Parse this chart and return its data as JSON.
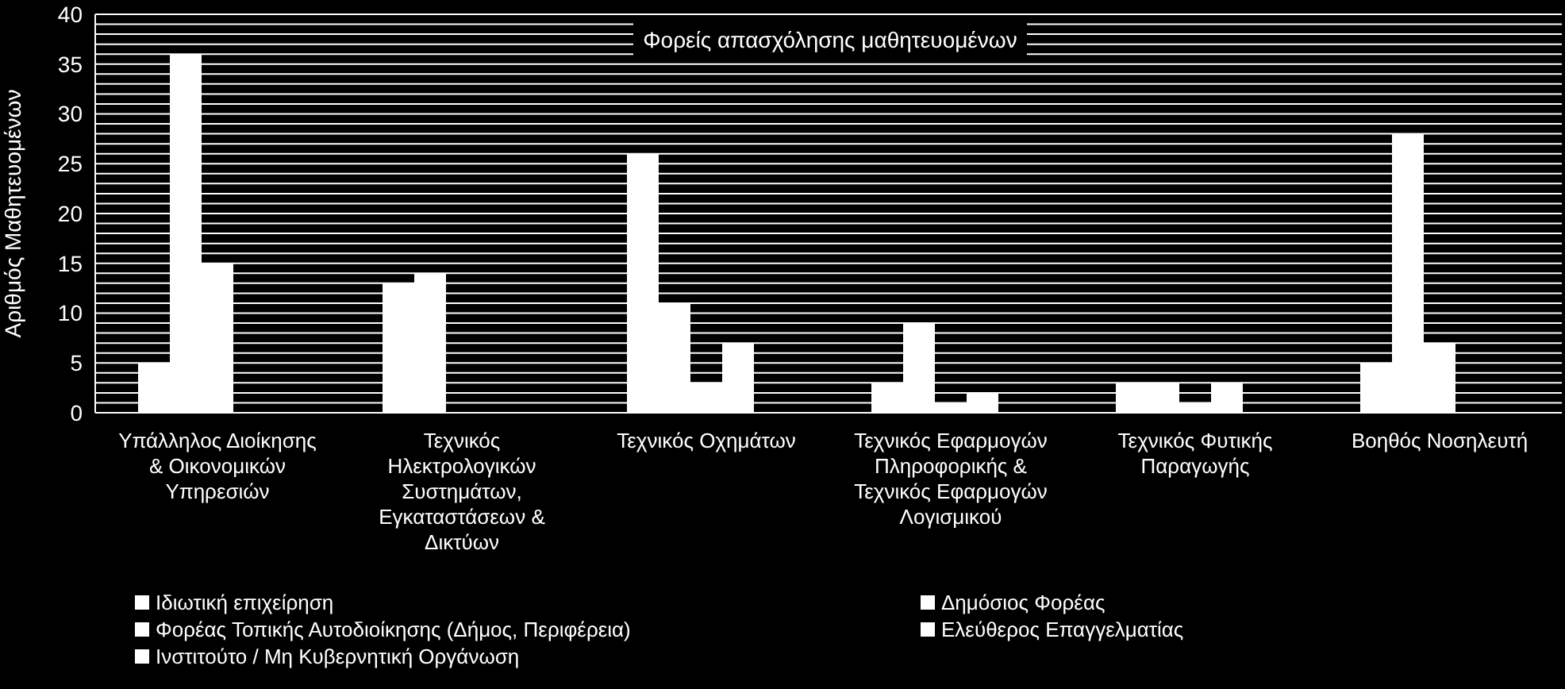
{
  "chart_data": {
    "type": "bar",
    "title": "Φορείς απασχόλησης μαθητευομένων",
    "ylabel": "Αριθμός Μαθητευομένων",
    "categories": [
      "Υπάλληλος Διοίκησης & Οικονομικών Υπηρεσιών",
      "Τεχνικός Ηλεκτρολογικών Συστημάτων, Εγκαταστάσεων & Δικτύων",
      "Τεχνικός Οχημάτων",
      "Τεχνικός Εφαρμογών Πληροφορικής & Τεχνικός Εφαρμογών Λογισμικού",
      "Τεχνικός Φυτικής Παραγωγής",
      "Βοηθός Νοσηλευτή"
    ],
    "series": [
      {
        "name": "Ιδιωτική επιχείρηση",
        "color": "#ffffff",
        "values": [
          5,
          13,
          26,
          3,
          3,
          5
        ]
      },
      {
        "name": "Δημόσιος Φορέας",
        "color": "#ffffff",
        "values": [
          36,
          14,
          11,
          9,
          3,
          28
        ]
      },
      {
        "name": "Φορέας Τοπικής Αυτοδιοίκησης (Δήμος, Περιφέρεια)",
        "color": "#ffffff",
        "values": [
          15,
          0,
          3,
          1,
          1,
          7
        ]
      },
      {
        "name": "Ελεύθερος Επαγγελματίας",
        "color": "#ffffff",
        "values": [
          0,
          0,
          7,
          2,
          3,
          0
        ]
      },
      {
        "name": "Ινστιτούτο / Μη Κυβερνητική Οργάνωση",
        "color": "#ffffff",
        "values": [
          0,
          0,
          0,
          0,
          0,
          0
        ]
      }
    ],
    "ylim": [
      0,
      40
    ],
    "yticks": [
      0,
      {
        "value": 1,
        "label": null
      },
      {
        "value": 2,
        "label": null
      },
      {
        "value": 3,
        "label": null
      },
      {
        "value": 4,
        "label": null
      },
      5,
      {
        "value": 6,
        "label": null
      },
      {
        "value": 7,
        "label": null
      },
      {
        "value": 8,
        "label": null
      },
      {
        "value": 9,
        "label": null
      },
      10,
      {
        "value": 11,
        "label": null
      },
      {
        "value": 12,
        "label": null
      },
      {
        "value": 13,
        "label": null
      },
      {
        "value": 14,
        "label": null
      },
      15,
      {
        "value": 16,
        "label": null
      },
      {
        "value": 17,
        "label": null
      },
      {
        "value": 18,
        "label": null
      },
      {
        "value": 19,
        "label": null
      },
      20,
      {
        "value": 21,
        "label": null
      },
      {
        "value": 22,
        "label": null
      },
      {
        "value": 23,
        "label": null
      },
      {
        "value": 24,
        "label": null
      },
      25,
      {
        "value": 26,
        "label": null
      },
      {
        "value": 27,
        "label": null
      },
      {
        "value": 28,
        "label": null
      },
      {
        "value": 29,
        "label": null
      },
      30,
      {
        "value": 31,
        "label": null
      },
      {
        "value": 32,
        "label": null
      },
      {
        "value": 33,
        "label": null
      },
      {
        "value": 34,
        "label": null
      },
      35,
      {
        "value": 36,
        "label": null
      },
      {
        "value": 37,
        "label": null
      },
      {
        "value": 38,
        "label": null
      },
      {
        "value": 39,
        "label": null
      },
      40
    ],
    "grid": "y",
    "legend": "bottom"
  }
}
